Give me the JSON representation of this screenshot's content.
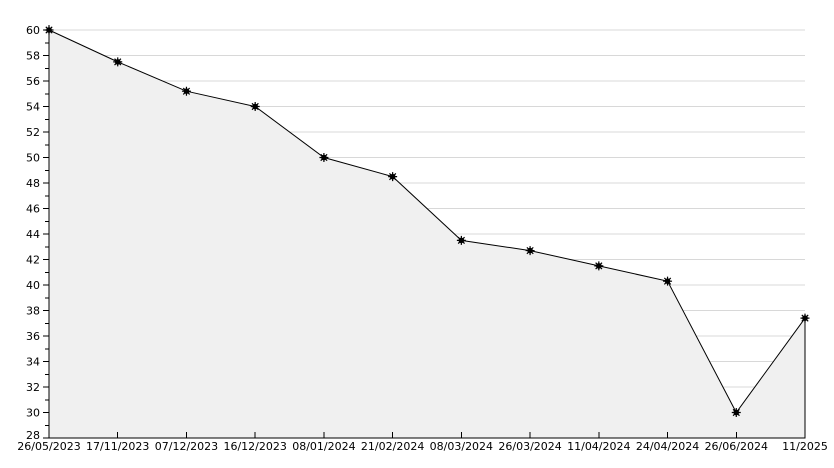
{
  "chart_data": {
    "type": "area",
    "title": "",
    "xlabel": "",
    "ylabel": "",
    "categories": [
      "26/05/2023",
      "17/11/2023",
      "07/12/2023",
      "16/12/2023",
      "08/01/2024",
      "21/02/2024",
      "08/03/2024",
      "26/03/2024",
      "11/04/2024",
      "24/04/2024",
      "26/06/2024",
      "11/2025"
    ],
    "values": [
      60.0,
      57.5,
      55.2,
      54.0,
      50.0,
      48.5,
      43.5,
      42.7,
      41.5,
      40.3,
      30.0,
      37.4
    ],
    "ylim": [
      28,
      60
    ],
    "y_major_step": 2,
    "y_minor_step": 1,
    "grid": true,
    "legend_position": "none",
    "marker": "star-dot",
    "colors": {
      "background": "#ffffff",
      "line": "#000000",
      "marker": "#000000",
      "area_fill": "#f0f0f0",
      "grid": "#d8d8d8",
      "axis": "#000000",
      "text": "#000000"
    }
  }
}
